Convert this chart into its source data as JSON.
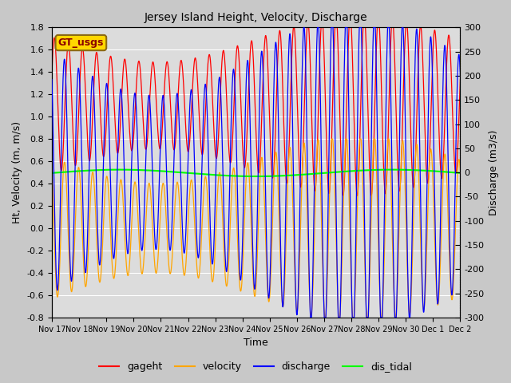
{
  "title": "Jersey Island Height, Velocity, Discharge",
  "xlabel": "Time",
  "ylabel_left": "Ht, Velocity (m, m/s)",
  "ylabel_right": "Discharge (m3/s)",
  "ylim_left": [
    -0.8,
    1.8
  ],
  "ylim_right": [
    -300,
    300
  ],
  "yticks_left": [
    -0.8,
    -0.6,
    -0.4,
    -0.2,
    0.0,
    0.2,
    0.4,
    0.6,
    0.8,
    1.0,
    1.2,
    1.4,
    1.6,
    1.8
  ],
  "yticks_right": [
    -300,
    -250,
    -200,
    -150,
    -100,
    -50,
    0,
    50,
    100,
    150,
    200,
    250,
    300
  ],
  "num_days": 15,
  "x_tick_start": 17,
  "legend_labels": [
    "gageht",
    "velocity",
    "discharge",
    "dis_tidal"
  ],
  "legend_colors": [
    "red",
    "orange",
    "blue",
    "green"
  ],
  "gt_usgs_label": "GT_usgs",
  "gt_usgs_color": "#8B0000",
  "gt_usgs_bg": "#FFD700",
  "background_color": "#c8c8c8",
  "plot_bg": "#dcdcdc",
  "tidal_period_hours": 12.42,
  "gageht_mean": 1.1,
  "gageht_amplitude": 0.6,
  "velocity_amplitude": 0.62,
  "discharge_amplitude": 245,
  "dis_tidal_mean": 0.495,
  "dis_tidal_amplitude": 0.03,
  "spring_neap_period_days": 14.76,
  "spring_neap_amplitude": 0.35,
  "spring_neap_phase": 1.5,
  "figwidth": 6.4,
  "figheight": 4.8,
  "dpi": 100
}
